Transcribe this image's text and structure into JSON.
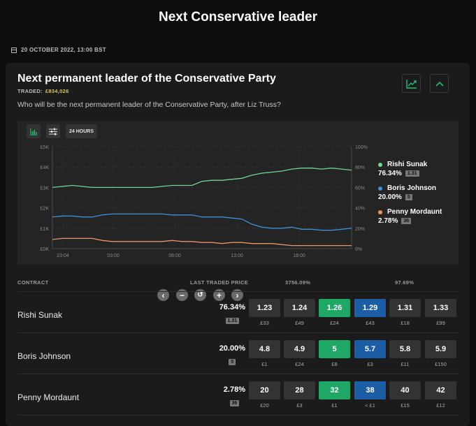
{
  "page": {
    "title": "Next Conservative leader",
    "date": "20 OCTOBER 2022, 13:00 BST"
  },
  "market": {
    "title": "Next permanent leader of the Conservative Party",
    "traded_label": "TRADED:",
    "traded_amount": "£834,026",
    "question": "Who will be the next permanent leader of the Conservative Party, after Liz Truss?"
  },
  "toolbar": {
    "range_label": "24 HOURS"
  },
  "chart_data": {
    "type": "line",
    "x_tick_labels": [
      "23:04",
      "03:00",
      "08:00",
      "13:00",
      "18:00"
    ],
    "y_left_labels": [
      "£5K",
      "£4K",
      "£3K",
      "£2K",
      "£1K",
      "£0K"
    ],
    "y_right_labels": [
      "100%",
      "80%",
      "60%",
      "40%",
      "20%",
      "0%"
    ],
    "ylim_right": [
      0,
      100
    ],
    "series": [
      {
        "name": "Rishi Sunak",
        "color": "#6fd69a",
        "values": [
          60,
          61,
          62,
          61,
          60,
          60,
          60,
          60,
          60,
          60,
          60,
          61,
          62,
          62,
          62,
          66,
          67,
          67,
          68,
          69,
          72,
          74,
          75,
          76,
          78,
          79,
          79,
          78,
          79,
          78,
          77
        ]
      },
      {
        "name": "Boris Johnson",
        "color": "#3d8fd6",
        "values": [
          31,
          32,
          32,
          31,
          31,
          33,
          34,
          34,
          34,
          34,
          34,
          34,
          33,
          33,
          33,
          31,
          31,
          31,
          30,
          29,
          24,
          21,
          20,
          20,
          21,
          19,
          19,
          18,
          18,
          19,
          20
        ]
      },
      {
        "name": "Penny Mordaunt",
        "color": "#e8946a",
        "values": [
          9,
          10,
          10,
          10,
          10,
          8,
          7,
          7,
          7,
          7,
          7,
          7,
          8,
          7,
          7,
          6,
          6,
          5,
          6,
          6,
          5,
          5,
          5,
          4,
          3,
          3,
          3,
          3,
          3,
          3,
          3
        ]
      }
    ]
  },
  "legend": [
    {
      "name": "Rishi Sunak",
      "pct": "76.34%",
      "odds": "1.31",
      "color": "#6fd69a"
    },
    {
      "name": "Boris Johnson",
      "pct": "20.00%",
      "odds": "5",
      "color": "#3d8fd6"
    },
    {
      "name": "Penny Mordaunt",
      "pct": "2.78%",
      "odds": "36",
      "color": "#e8946a"
    }
  ],
  "table": {
    "col_contract": "CONTRACT",
    "col_ltp": "LAST TRADED PRICE",
    "col_back_book": "3756.09%",
    "col_lay_book": "97.69%",
    "rows": [
      {
        "name": "Rishi Sunak",
        "pct": "76.34%",
        "odds": "1.31",
        "prices": [
          {
            "price": "1.23",
            "vol": "£33"
          },
          {
            "price": "1.24",
            "vol": "£49"
          },
          {
            "price": "1.26",
            "vol": "£24"
          },
          {
            "price": "1.29",
            "vol": "£43"
          },
          {
            "price": "1.31",
            "vol": "£18"
          },
          {
            "price": "1.33",
            "vol": "£99"
          }
        ]
      },
      {
        "name": "Boris Johnson",
        "pct": "20.00%",
        "odds": "5",
        "prices": [
          {
            "price": "4.8",
            "vol": "£1"
          },
          {
            "price": "4.9",
            "vol": "£24"
          },
          {
            "price": "5",
            "vol": "£8"
          },
          {
            "price": "5.7",
            "vol": "£3"
          },
          {
            "price": "5.8",
            "vol": "£11"
          },
          {
            "price": "5.9",
            "vol": "£150"
          }
        ]
      },
      {
        "name": "Penny Mordaunt",
        "pct": "2.78%",
        "odds": "36",
        "prices": [
          {
            "price": "20",
            "vol": "£20"
          },
          {
            "price": "28",
            "vol": "£3"
          },
          {
            "price": "32",
            "vol": "£1"
          },
          {
            "price": "38",
            "vol": "< £1"
          },
          {
            "price": "40",
            "vol": "£15"
          },
          {
            "price": "42",
            "vol": "£12"
          }
        ]
      }
    ]
  }
}
